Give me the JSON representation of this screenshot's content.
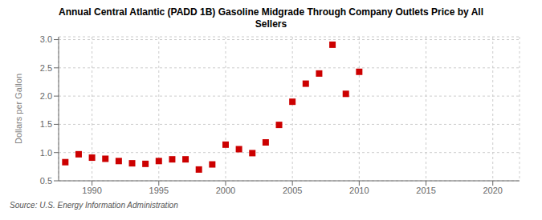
{
  "chart_data": {
    "type": "scatter",
    "title": "Annual Central Atlantic (PADD 1B) Gasoline Midgrade Through Company Outlets Price by All\nSellers",
    "ylabel": "Dollars per Gallon",
    "annotations": [
      "Source: U.S. Energy Information Administration"
    ],
    "x": [
      1988,
      1989,
      1990,
      1991,
      1992,
      1993,
      1994,
      1995,
      1996,
      1997,
      1998,
      1999,
      2000,
      2001,
      2002,
      2003,
      2004,
      2005,
      2006,
      2007,
      2008,
      2009,
      2010
    ],
    "values": [
      0.83,
      0.97,
      0.91,
      0.89,
      0.85,
      0.81,
      0.8,
      0.85,
      0.88,
      0.88,
      0.7,
      0.79,
      1.14,
      1.06,
      0.99,
      1.18,
      1.49,
      1.9,
      2.22,
      2.4,
      2.91,
      2.04,
      2.43
    ],
    "color": "#cc0000",
    "marker": "square",
    "xlim": [
      1987.5,
      2022
    ],
    "ylim": [
      0.5,
      3.05
    ],
    "xticks": [
      1990,
      1995,
      2000,
      2005,
      2010,
      2015,
      2020
    ],
    "yticks": [
      0.5,
      {
        "value": 1,
        "label": "1.0"
      },
      1.5,
      {
        "value": 2,
        "label": "2.0"
      },
      2.5,
      {
        "value": 3,
        "label": "3.0"
      }
    ],
    "grid": true
  }
}
